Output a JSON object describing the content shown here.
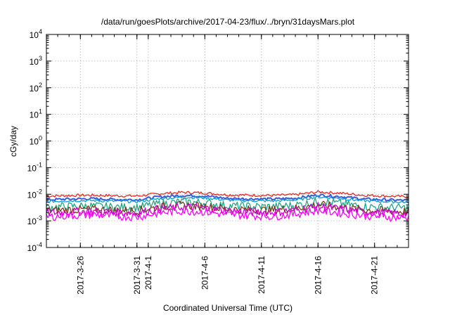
{
  "chart_data": {
    "type": "line",
    "title": "/data/run/goesPlots/archive/2017-04-23/flux/../bryn/31daysMars.plot",
    "xlabel": "Coordinated Universal Time (UTC)",
    "ylabel": "cGy/day",
    "yscale": "log",
    "ylim": [
      0.0001,
      10000
    ],
    "xlim": [
      "2017-03-23",
      "2017-04-24"
    ],
    "grid": true,
    "legend": "none",
    "y_ticks": [
      {
        "value": 0.0001,
        "mantissa": "10",
        "exp": "-4"
      },
      {
        "value": 0.001,
        "mantissa": "10",
        "exp": "-3"
      },
      {
        "value": 0.01,
        "mantissa": "10",
        "exp": "-2"
      },
      {
        "value": 0.1,
        "mantissa": "10",
        "exp": "-1"
      },
      {
        "value": 1,
        "mantissa": "10",
        "exp": "0"
      },
      {
        "value": 10,
        "mantissa": "10",
        "exp": "1"
      },
      {
        "value": 100,
        "mantissa": "10",
        "exp": "2"
      },
      {
        "value": 1000,
        "mantissa": "10",
        "exp": "3"
      },
      {
        "value": 10000,
        "mantissa": "10",
        "exp": "4"
      }
    ],
    "x_ticks": [
      {
        "date": "2017-03-26",
        "label": "2017-3-26"
      },
      {
        "date": "2017-03-31",
        "label": "2017-3-31"
      },
      {
        "date": "2017-04-01",
        "label": "2017-4-1"
      },
      {
        "date": "2017-04-06",
        "label": "2017-4-6"
      },
      {
        "date": "2017-04-11",
        "label": "2017-4-11"
      },
      {
        "date": "2017-04-16",
        "label": "2017-4-16"
      },
      {
        "date": "2017-04-21",
        "label": "2017-4-21"
      }
    ],
    "series": [
      {
        "color": "#e8241c",
        "x": [
          "2017-03-23",
          "2017-03-25",
          "2017-03-27",
          "2017-03-29",
          "2017-03-31",
          "2017-04-02",
          "2017-04-04",
          "2017-04-06",
          "2017-04-08",
          "2017-04-10",
          "2017-04-12",
          "2017-04-14",
          "2017-04-16",
          "2017-04-18",
          "2017-04-20",
          "2017-04-22",
          "2017-04-24"
        ],
        "values": [
          0.0085,
          0.009,
          0.0092,
          0.0088,
          0.0086,
          0.0105,
          0.0118,
          0.0112,
          0.0095,
          0.0092,
          0.009,
          0.0096,
          0.0122,
          0.011,
          0.0092,
          0.0086,
          0.008
        ]
      },
      {
        "color": "#3b5bdb",
        "x": [
          "2017-03-23",
          "2017-03-25",
          "2017-03-27",
          "2017-03-29",
          "2017-03-31",
          "2017-04-02",
          "2017-04-04",
          "2017-04-06",
          "2017-04-08",
          "2017-04-10",
          "2017-04-12",
          "2017-04-14",
          "2017-04-16",
          "2017-04-18",
          "2017-04-20",
          "2017-04-22",
          "2017-04-24"
        ],
        "values": [
          0.0062,
          0.0066,
          0.0068,
          0.0064,
          0.0062,
          0.008,
          0.009,
          0.0086,
          0.007,
          0.0067,
          0.0066,
          0.0071,
          0.0093,
          0.0082,
          0.0066,
          0.0062,
          0.0058
        ]
      },
      {
        "color": "#00a0d8",
        "x": [
          "2017-03-23",
          "2017-03-25",
          "2017-03-27",
          "2017-03-29",
          "2017-03-31",
          "2017-04-02",
          "2017-04-04",
          "2017-04-06",
          "2017-04-08",
          "2017-04-10",
          "2017-04-12",
          "2017-04-14",
          "2017-04-16",
          "2017-04-18",
          "2017-04-20",
          "2017-04-22",
          "2017-04-24"
        ],
        "values": [
          0.0053,
          0.0057,
          0.0058,
          0.0055,
          0.0053,
          0.0068,
          0.0077,
          0.0073,
          0.006,
          0.0057,
          0.0056,
          0.0061,
          0.0079,
          0.007,
          0.0057,
          0.0053,
          0.005
        ]
      },
      {
        "color": "#1fa784",
        "x": [
          "2017-03-23",
          "2017-03-25",
          "2017-03-27",
          "2017-03-29",
          "2017-03-31",
          "2017-04-02",
          "2017-04-04",
          "2017-04-06",
          "2017-04-08",
          "2017-04-10",
          "2017-04-12",
          "2017-04-14",
          "2017-04-16",
          "2017-04-18",
          "2017-04-20",
          "2017-04-22",
          "2017-04-24"
        ],
        "values": [
          0.0032,
          0.0035,
          0.0036,
          0.0033,
          0.0032,
          0.0044,
          0.0052,
          0.0048,
          0.0037,
          0.0035,
          0.0034,
          0.0039,
          0.0054,
          0.0045,
          0.0035,
          0.0032,
          0.003
        ]
      },
      {
        "color": "#7a3b1e",
        "x": [
          "2017-03-23",
          "2017-03-25",
          "2017-03-27",
          "2017-03-29",
          "2017-03-31",
          "2017-04-02",
          "2017-04-04",
          "2017-04-06",
          "2017-04-08",
          "2017-04-10",
          "2017-04-12",
          "2017-04-14",
          "2017-04-16",
          "2017-04-18",
          "2017-04-20",
          "2017-04-22",
          "2017-04-24"
        ],
        "values": [
          0.0024,
          0.0026,
          0.0027,
          0.0025,
          0.0024,
          0.0033,
          0.0038,
          0.0035,
          0.0028,
          0.0026,
          0.0025,
          0.0029,
          0.004,
          0.0033,
          0.0026,
          0.0024,
          0.0022
        ]
      },
      {
        "color": "#d000d0",
        "x": [
          "2017-03-23",
          "2017-03-25",
          "2017-03-27",
          "2017-03-29",
          "2017-03-31",
          "2017-04-02",
          "2017-04-04",
          "2017-04-06",
          "2017-04-08",
          "2017-04-10",
          "2017-04-12",
          "2017-04-14",
          "2017-04-16",
          "2017-04-18",
          "2017-04-20",
          "2017-04-22",
          "2017-04-24"
        ],
        "values": [
          0.002,
          0.0022,
          0.0023,
          0.0021,
          0.002,
          0.0028,
          0.0033,
          0.003,
          0.0024,
          0.0022,
          0.0021,
          0.0025,
          0.0034,
          0.0028,
          0.0022,
          0.002,
          0.0018
        ]
      },
      {
        "color": "#ff00ff",
        "x": [
          "2017-03-23",
          "2017-03-25",
          "2017-03-27",
          "2017-03-29",
          "2017-03-31",
          "2017-04-02",
          "2017-04-04",
          "2017-04-06",
          "2017-04-08",
          "2017-04-10",
          "2017-04-12",
          "2017-04-14",
          "2017-04-16",
          "2017-04-18",
          "2017-04-20",
          "2017-04-22",
          "2017-04-24"
        ],
        "values": [
          0.0014,
          0.0016,
          0.0017,
          0.0015,
          0.0014,
          0.002,
          0.0024,
          0.0022,
          0.0017,
          0.0016,
          0.0015,
          0.0018,
          0.0025,
          0.002,
          0.0016,
          0.0014,
          0.0013
        ]
      }
    ]
  }
}
